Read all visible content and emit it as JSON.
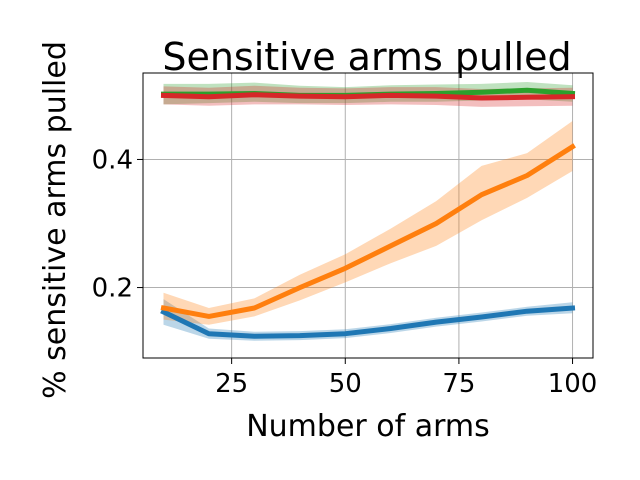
{
  "chart_data": {
    "type": "line",
    "title": "Sensitive arms pulled",
    "xlabel": "Number of arms",
    "ylabel": "% sensitive arms pulled",
    "xlim": [
      5.5,
      104.5
    ],
    "ylim": [
      0.09,
      0.535
    ],
    "xticks": [
      25,
      50,
      75,
      100
    ],
    "xtick_labels": [
      "25",
      "50",
      "75",
      "100"
    ],
    "yticks": [
      0.2,
      0.4
    ],
    "ytick_labels": [
      "0.2",
      "0.4"
    ],
    "grid": true,
    "legend": null,
    "x": [
      10,
      20,
      30,
      40,
      50,
      60,
      70,
      80,
      90,
      100
    ],
    "series": [
      {
        "color": "#1f77b4",
        "values": [
          0.162,
          0.128,
          0.124,
          0.125,
          0.128,
          0.136,
          0.146,
          0.154,
          0.163,
          0.168
        ],
        "lower": [
          0.142,
          0.12,
          0.117,
          0.118,
          0.121,
          0.129,
          0.139,
          0.147,
          0.156,
          0.16
        ],
        "upper": [
          0.182,
          0.136,
          0.131,
          0.132,
          0.135,
          0.143,
          0.153,
          0.161,
          0.17,
          0.177
        ]
      },
      {
        "color": "#ff7f0e",
        "values": [
          0.168,
          0.155,
          0.168,
          0.2,
          0.23,
          0.265,
          0.3,
          0.345,
          0.375,
          0.42
        ],
        "lower": [
          0.15,
          0.142,
          0.155,
          0.18,
          0.208,
          0.238,
          0.265,
          0.305,
          0.34,
          0.382
        ],
        "upper": [
          0.192,
          0.168,
          0.183,
          0.22,
          0.252,
          0.292,
          0.335,
          0.39,
          0.41,
          0.46
        ]
      },
      {
        "color": "#2ca02c",
        "values": [
          0.502,
          0.502,
          0.503,
          0.5,
          0.5,
          0.502,
          0.503,
          0.505,
          0.508,
          0.503
        ],
        "lower": [
          0.486,
          0.488,
          0.49,
          0.488,
          0.488,
          0.49,
          0.49,
          0.492,
          0.494,
          0.49
        ],
        "upper": [
          0.518,
          0.518,
          0.52,
          0.515,
          0.513,
          0.516,
          0.517,
          0.518,
          0.521,
          0.516
        ]
      },
      {
        "color": "#d62728",
        "values": [
          0.5,
          0.498,
          0.501,
          0.499,
          0.498,
          0.5,
          0.499,
          0.496,
          0.497,
          0.498
        ],
        "lower": [
          0.486,
          0.484,
          0.486,
          0.486,
          0.485,
          0.486,
          0.485,
          0.482,
          0.483,
          0.484
        ],
        "upper": [
          0.514,
          0.512,
          0.515,
          0.512,
          0.511,
          0.513,
          0.513,
          0.51,
          0.511,
          0.512
        ]
      }
    ]
  }
}
